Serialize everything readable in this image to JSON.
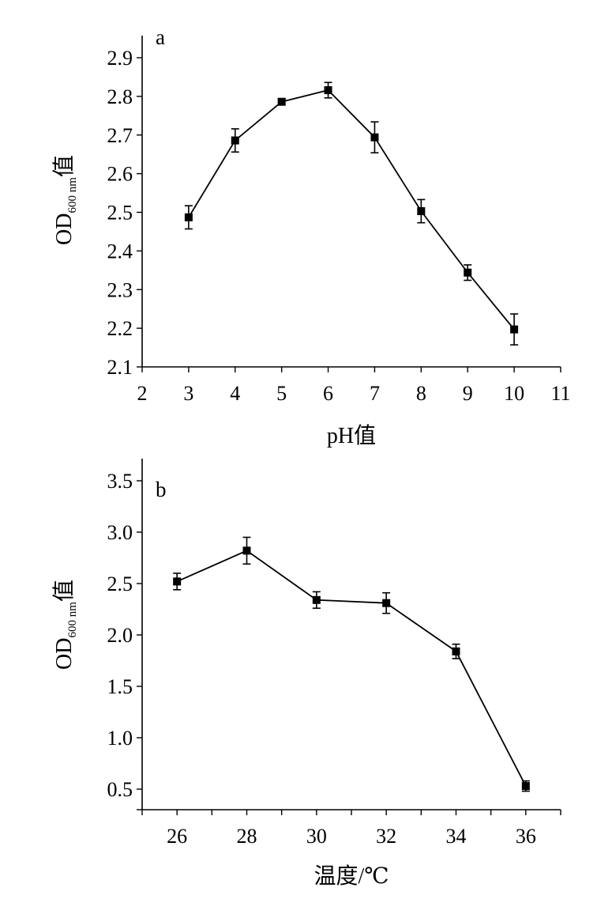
{
  "chart_data": [
    {
      "type": "line",
      "panel_label": "a",
      "xlabel": "pH值",
      "ylabel": {
        "main": "OD",
        "sub": "600 nm",
        "suffix": "值"
      },
      "xlim": [
        2,
        11
      ],
      "ylim": [
        2.1,
        2.9
      ],
      "xticks": [
        2,
        3,
        4,
        5,
        6,
        7,
        8,
        9,
        10,
        11
      ],
      "xtick_labels": [
        "2",
        "3",
        "4",
        "5",
        "6",
        "7",
        "8",
        "9",
        "10",
        "11"
      ],
      "yticks": [
        2.1,
        2.2,
        2.3,
        2.4,
        2.5,
        2.6,
        2.7,
        2.8,
        2.9
      ],
      "ytick_labels": [
        "2.1",
        "2.2",
        "2.3",
        "2.4",
        "2.5",
        "2.6",
        "2.7",
        "2.8",
        "2.9"
      ],
      "series": [
        {
          "x": [
            3,
            4,
            5,
            6,
            7,
            8,
            9,
            10
          ],
          "y": [
            2.487,
            2.686,
            2.786,
            2.816,
            2.694,
            2.503,
            2.344,
            2.197
          ],
          "error": [
            0.03,
            0.03,
            0.007,
            0.02,
            0.04,
            0.03,
            0.02,
            0.04
          ]
        }
      ]
    },
    {
      "type": "line",
      "panel_label": "b",
      "xlabel": "温度/℃",
      "ylabel": {
        "main": "OD",
        "sub": "600 nm",
        "suffix": "值"
      },
      "xlim": [
        25,
        37
      ],
      "ylim": [
        0.3,
        3.5
      ],
      "xticks": [
        26,
        28,
        30,
        32,
        34,
        36
      ],
      "xtick_labels": [
        "26",
        "28",
        "30",
        "32",
        "34",
        "36"
      ],
      "yticks": [
        0.5,
        1.0,
        1.5,
        2.0,
        2.5,
        3.0,
        3.5
      ],
      "ytick_labels": [
        "0.5",
        "1.0",
        "1.5",
        "2.0",
        "2.5",
        "3.0",
        "3.5"
      ],
      "minor_xticks": [
        25,
        27,
        29,
        31,
        33,
        35,
        37
      ],
      "minor_yticks": [
        0.3
      ],
      "series": [
        {
          "x": [
            26,
            28,
            30,
            32,
            34,
            36
          ],
          "y": [
            2.52,
            2.82,
            2.34,
            2.31,
            1.84,
            0.53
          ],
          "error": [
            0.08,
            0.13,
            0.08,
            0.1,
            0.07,
            0.05
          ]
        }
      ]
    }
  ]
}
